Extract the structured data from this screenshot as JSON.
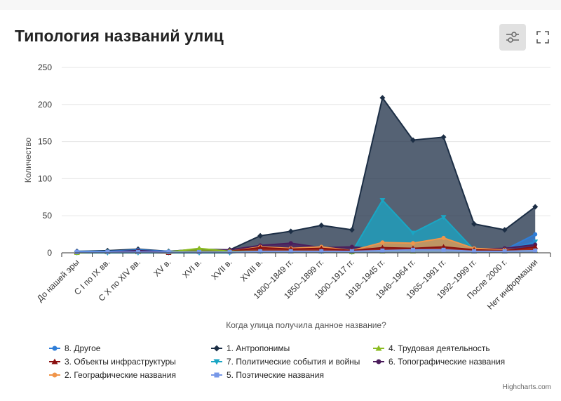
{
  "page": {
    "title": "Типология названий улиц",
    "credits": "Highcharts.com",
    "toolbar": {
      "filter_icon": "sliders-icon",
      "fullscreen_icon": "fullscreen-icon"
    }
  },
  "chart_data": {
    "type": "area",
    "title": "Типология названий улиц",
    "xlabel": "Когда улица получила данное название?",
    "ylabel": "Количество",
    "ylim": [
      0,
      250
    ],
    "yticks": [
      0,
      50,
      100,
      150,
      200,
      250
    ],
    "grid": true,
    "legend_position": "bottom",
    "categories": [
      "До нашей эры",
      "С I по IX вв.",
      "С X по XIV вв.",
      "XV в.",
      "XVI в.",
      "XVII в.",
      "XVIII в.",
      "1800–1849 гг.",
      "1850–1899 гг.",
      "1900–1917 гг.",
      "1918–1945 гг.",
      "1946–1964 гг.",
      "1965–1991 гг.",
      "1992–1999 гг.",
      "После 2000 г.",
      "Нет информации"
    ],
    "series": [
      {
        "name": "1. Антропонимы",
        "color": "#1c2e45",
        "marker": "diamond",
        "values": [
          2,
          3,
          5,
          2,
          5,
          4,
          23,
          29,
          37,
          31,
          209,
          152,
          156,
          39,
          31,
          62
        ]
      },
      {
        "name": "7. Политические события и войны",
        "color": "#1aa6c4",
        "marker": "triangle-down",
        "values": [
          0,
          0,
          0,
          0,
          0,
          0,
          2,
          3,
          2,
          1,
          71,
          27,
          48,
          4,
          3,
          15
        ]
      },
      {
        "name": "8. Другое",
        "color": "#2f7ed8",
        "marker": "circle",
        "values": [
          2,
          2,
          4,
          2,
          2,
          3,
          3,
          4,
          3,
          3,
          5,
          5,
          5,
          3,
          4,
          25
        ]
      },
      {
        "name": "6. Топографические названия",
        "color": "#4b1d5c",
        "marker": "circle",
        "values": [
          1,
          1,
          3,
          1,
          4,
          4,
          10,
          13,
          7,
          8,
          5,
          6,
          7,
          5,
          6,
          11
        ]
      },
      {
        "name": "2. Географические названия",
        "color": "#f0954a",
        "marker": "circle",
        "values": [
          1,
          1,
          1,
          1,
          2,
          2,
          8,
          6,
          8,
          3,
          14,
          13,
          20,
          6,
          4,
          6
        ]
      },
      {
        "name": "3. Объекты инфраструктуры",
        "color": "#8a0f0f",
        "marker": "triangle",
        "values": [
          1,
          1,
          1,
          0,
          2,
          2,
          7,
          5,
          6,
          3,
          7,
          6,
          8,
          4,
          3,
          8
        ]
      },
      {
        "name": "4. Трудовая деятельность",
        "color": "#8bbc21",
        "marker": "triangle",
        "values": [
          0,
          1,
          1,
          1,
          6,
          2,
          2,
          2,
          2,
          1,
          2,
          2,
          3,
          2,
          2,
          3
        ]
      },
      {
        "name": "5. Поэтические названия",
        "color": "#7798e8",
        "marker": "square",
        "values": [
          1,
          1,
          1,
          1,
          1,
          1,
          2,
          2,
          2,
          2,
          3,
          4,
          4,
          2,
          2,
          3
        ]
      }
    ]
  },
  "legend": {
    "items": [
      {
        "label": "8. Другое",
        "color": "#2f7ed8",
        "marker": "circle"
      },
      {
        "label": "1. Антропонимы",
        "color": "#1c2e45",
        "marker": "diamond"
      },
      {
        "label": "4. Трудовая деятельность",
        "color": "#8bbc21",
        "marker": "triangle"
      },
      {
        "label": "3. Объекты инфраструктуры",
        "color": "#8a0f0f",
        "marker": "triangle"
      },
      {
        "label": "7. Политические события и войны",
        "color": "#1aa6c4",
        "marker": "triangle-down"
      },
      {
        "label": "6. Топографические названия",
        "color": "#4b1d5c",
        "marker": "circle"
      },
      {
        "label": "2. Географические названия",
        "color": "#f0954a",
        "marker": "circle"
      },
      {
        "label": "5. Поэтические названия",
        "color": "#7798e8",
        "marker": "square"
      }
    ]
  }
}
